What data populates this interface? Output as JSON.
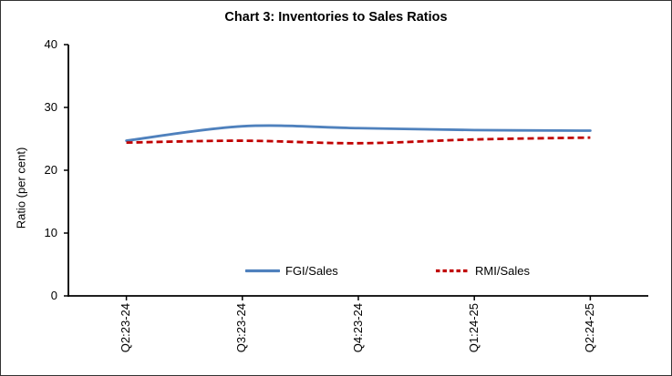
{
  "chart_data": {
    "type": "line",
    "title": "Chart 3: Inventories to Sales Ratios",
    "ylabel": "Ratio (per cent)",
    "xlabel": "",
    "categories": [
      "Q2:23-24",
      "Q3:23-24",
      "Q4:23-24",
      "Q1:24-25",
      "Q2:24-25"
    ],
    "series": [
      {
        "name": "FGI/Sales",
        "color": "#4F81BD",
        "style": "solid",
        "values": [
          24.7,
          27.0,
          26.7,
          26.4,
          26.3
        ]
      },
      {
        "name": "RMI/Sales",
        "color": "#C00000",
        "style": "dashed",
        "values": [
          24.4,
          24.7,
          24.3,
          24.9,
          25.2
        ]
      }
    ],
    "ylim": [
      0,
      40
    ],
    "yticks": [
      0,
      10,
      20,
      30,
      40
    ],
    "grid": false,
    "smoothed": true,
    "legend_position": "bottom-inside",
    "axis_color": "#000000"
  }
}
